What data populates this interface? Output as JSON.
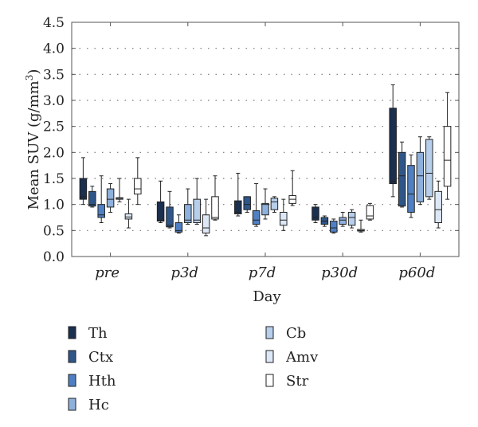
{
  "chart_data": {
    "type": "boxplot",
    "xlabel": "Day",
    "ylabel": "Mean SUV (g/mm",
    "ylabel_sup": "3",
    "ylabel_close": ")",
    "ylim": [
      0,
      4.5
    ],
    "yticks": [
      "0.0",
      "0.5",
      "1.0",
      "1.5",
      "2.0",
      "2.5",
      "3.0",
      "3.5",
      "4.0",
      "4.5"
    ],
    "grid": "dotted horizontal",
    "legend_position": "bottom",
    "categories": [
      "pre",
      "p3d",
      "p7d",
      "p30d",
      "p60d"
    ],
    "series": [
      {
        "name": "Th",
        "color": "#1b2f4e",
        "boxes": [
          {
            "min": 1.0,
            "q1": 1.1,
            "median": 1.15,
            "q3": 1.5,
            "max": 1.9
          },
          {
            "min": 0.65,
            "q1": 0.68,
            "median": 0.7,
            "q3": 1.05,
            "max": 1.45
          },
          {
            "min": 0.78,
            "q1": 0.82,
            "median": 0.85,
            "q3": 1.07,
            "max": 1.6
          },
          {
            "min": 0.65,
            "q1": 0.7,
            "median": 0.75,
            "q3": 0.95,
            "max": 1.0
          },
          {
            "min": 1.15,
            "q1": 1.4,
            "median": 1.45,
            "q3": 2.85,
            "max": 3.3
          }
        ]
      },
      {
        "name": "Ctx",
        "color": "#2f5689",
        "boxes": [
          {
            "min": 0.95,
            "q1": 0.97,
            "median": 1.0,
            "q3": 1.25,
            "max": 1.35
          },
          {
            "min": 0.55,
            "q1": 0.57,
            "median": 0.6,
            "q3": 0.95,
            "max": 1.25
          },
          {
            "min": 0.85,
            "q1": 0.9,
            "median": 1.0,
            "q3": 1.15,
            "max": 1.15
          },
          {
            "min": 0.58,
            "q1": 0.62,
            "median": 0.68,
            "q3": 0.75,
            "max": 0.78
          },
          {
            "min": 0.95,
            "q1": 0.97,
            "median": 1.55,
            "q3": 2.0,
            "max": 2.2
          }
        ]
      },
      {
        "name": "Hth",
        "color": "#4f80c4",
        "boxes": [
          {
            "min": 0.65,
            "q1": 0.75,
            "median": 0.8,
            "q3": 1.0,
            "max": 1.55
          },
          {
            "min": 0.45,
            "q1": 0.47,
            "median": 0.5,
            "q3": 0.65,
            "max": 0.8
          },
          {
            "min": 0.58,
            "q1": 0.62,
            "median": 0.7,
            "q3": 0.88,
            "max": 1.4
          },
          {
            "min": 0.45,
            "q1": 0.47,
            "median": 0.55,
            "q3": 0.68,
            "max": 0.72
          },
          {
            "min": 0.75,
            "q1": 0.85,
            "median": 1.2,
            "q3": 1.75,
            "max": 1.95
          }
        ]
      },
      {
        "name": "Hc",
        "color": "#8eb0dc",
        "boxes": [
          {
            "min": 0.85,
            "q1": 0.95,
            "median": 1.1,
            "q3": 1.3,
            "max": 1.4
          },
          {
            "min": 0.62,
            "q1": 0.65,
            "median": 0.7,
            "q3": 1.0,
            "max": 1.3
          },
          {
            "min": 0.72,
            "q1": 0.8,
            "median": 1.0,
            "q3": 1.02,
            "max": 1.3
          },
          {
            "min": 0.58,
            "q1": 0.62,
            "median": 0.7,
            "q3": 0.75,
            "max": 0.85
          },
          {
            "min": 1.0,
            "q1": 1.05,
            "median": 1.55,
            "q3": 2.0,
            "max": 2.3
          }
        ]
      },
      {
        "name": "Cb",
        "color": "#b7cfea",
        "boxes": [
          {
            "min": 1.05,
            "q1": 1.1,
            "median": 1.12,
            "q3": 1.13,
            "max": 1.5
          },
          {
            "min": 0.62,
            "q1": 0.65,
            "median": 0.7,
            "q3": 1.1,
            "max": 1.5
          },
          {
            "min": 0.85,
            "q1": 0.9,
            "median": 1.05,
            "q3": 1.12,
            "max": 1.15
          },
          {
            "min": 0.55,
            "q1": 0.6,
            "median": 0.75,
            "q3": 0.85,
            "max": 0.9
          },
          {
            "min": 1.1,
            "q1": 1.15,
            "median": 1.6,
            "q3": 2.25,
            "max": 2.3
          }
        ]
      },
      {
        "name": "Amv",
        "color": "#dce8f5",
        "boxes": [
          {
            "min": 0.55,
            "q1": 0.72,
            "median": 0.76,
            "q3": 0.82,
            "max": 1.1
          },
          {
            "min": 0.4,
            "q1": 0.45,
            "median": 0.55,
            "q3": 0.8,
            "max": 1.1
          },
          {
            "min": 0.5,
            "q1": 0.6,
            "median": 0.7,
            "q3": 0.85,
            "max": 1.1
          },
          {
            "min": 0.47,
            "q1": 0.49,
            "median": 0.5,
            "q3": 0.52,
            "max": 0.7
          },
          {
            "min": 0.55,
            "q1": 0.65,
            "median": 0.9,
            "q3": 1.25,
            "max": 1.45
          }
        ]
      },
      {
        "name": "Str",
        "color": "#ffffff",
        "boxes": [
          {
            "min": 1.0,
            "q1": 1.2,
            "median": 1.3,
            "q3": 1.5,
            "max": 1.9
          },
          {
            "min": 0.7,
            "q1": 0.72,
            "median": 0.75,
            "q3": 1.15,
            "max": 1.55
          },
          {
            "min": 0.98,
            "q1": 1.02,
            "median": 1.1,
            "q3": 1.17,
            "max": 1.65
          },
          {
            "min": 0.7,
            "q1": 0.72,
            "median": 0.78,
            "q3": 0.98,
            "max": 1.02
          },
          {
            "min": 1.1,
            "q1": 1.35,
            "median": 1.85,
            "q3": 2.5,
            "max": 3.15
          }
        ]
      }
    ]
  }
}
